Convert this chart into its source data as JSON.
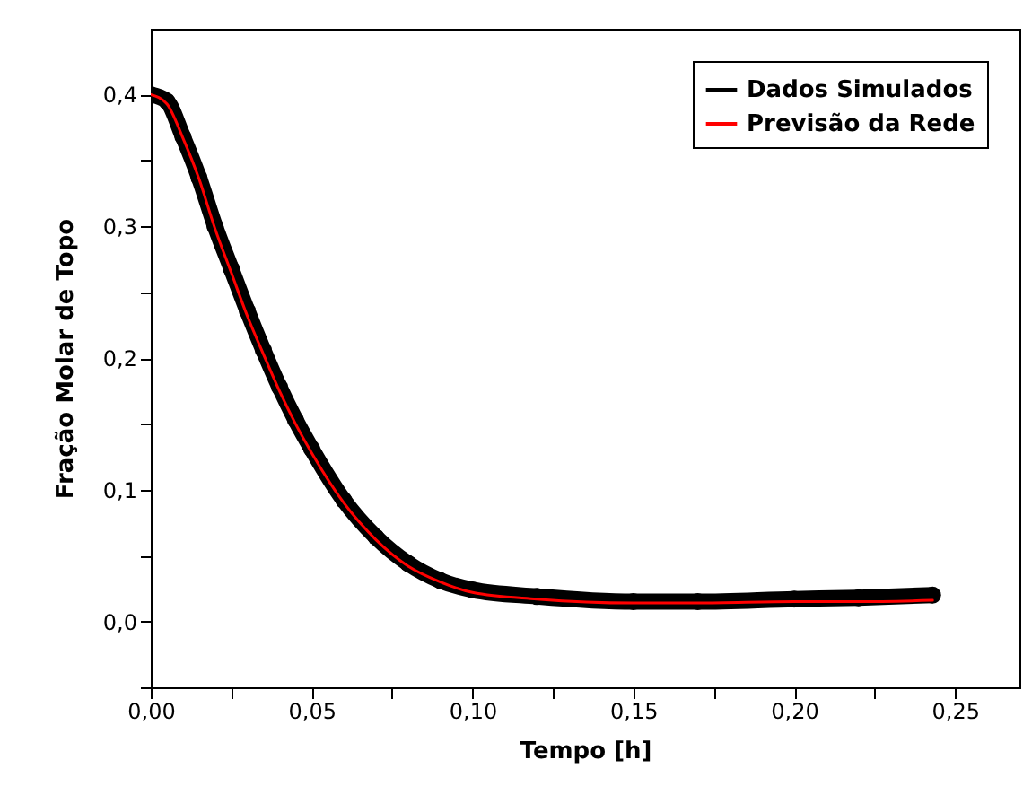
{
  "chart_data": {
    "type": "line",
    "xlabel": "Tempo [h]",
    "ylabel": "Fração Molar de Topo",
    "x": [
      0,
      0.005,
      0.01,
      0.015,
      0.02,
      0.025,
      0.03,
      0.035,
      0.04,
      0.045,
      0.05,
      0.06,
      0.07,
      0.08,
      0.09,
      0.1,
      0.12,
      0.15,
      0.17,
      0.2,
      0.22,
      0.243
    ],
    "series": [
      {
        "name": "Dados Simulados",
        "color": "#000000",
        "marker": "circle",
        "values": [
          0.4,
          0.395,
          0.368,
          0.337,
          0.3,
          0.268,
          0.236,
          0.206,
          0.178,
          0.153,
          0.131,
          0.092,
          0.064,
          0.044,
          0.031,
          0.024,
          0.019,
          0.015,
          0.015,
          0.017,
          0.018,
          0.02
        ]
      },
      {
        "name": "Previsão da Rede",
        "color": "#ff0000",
        "marker": "none",
        "values": [
          0.4,
          0.393,
          0.367,
          0.336,
          0.298,
          0.265,
          0.232,
          0.203,
          0.175,
          0.15,
          0.128,
          0.09,
          0.062,
          0.042,
          0.03,
          0.022,
          0.017,
          0.014,
          0.014,
          0.015,
          0.015,
          0.016
        ]
      }
    ],
    "xlim": [
      0,
      0.27
    ],
    "ylim": [
      -0.05,
      0.45
    ],
    "xticks": [
      {
        "value": 0,
        "label": "0,00"
      },
      {
        "value": 0.025,
        "label": null
      },
      {
        "value": 0.05,
        "label": "0,05"
      },
      {
        "value": 0.075,
        "label": null
      },
      {
        "value": 0.1,
        "label": "0,10"
      },
      {
        "value": 0.125,
        "label": null
      },
      {
        "value": 0.15,
        "label": "0,15"
      },
      {
        "value": 0.175,
        "label": null
      },
      {
        "value": 0.2,
        "label": "0,20"
      },
      {
        "value": 0.225,
        "label": null
      },
      {
        "value": 0.25,
        "label": "0,25"
      }
    ],
    "yticks": [
      {
        "value": -0.05,
        "label": null
      },
      {
        "value": 0,
        "label": "0,0"
      },
      {
        "value": 0.05,
        "label": null
      },
      {
        "value": 0.1,
        "label": "0,1"
      },
      {
        "value": 0.15,
        "label": null
      },
      {
        "value": 0.2,
        "label": "0,2"
      },
      {
        "value": 0.25,
        "label": null
      },
      {
        "value": 0.3,
        "label": "0,3"
      },
      {
        "value": 0.35,
        "label": null
      },
      {
        "value": 0.4,
        "label": "0,4"
      }
    ],
    "legend": "top right",
    "grid": false
  }
}
